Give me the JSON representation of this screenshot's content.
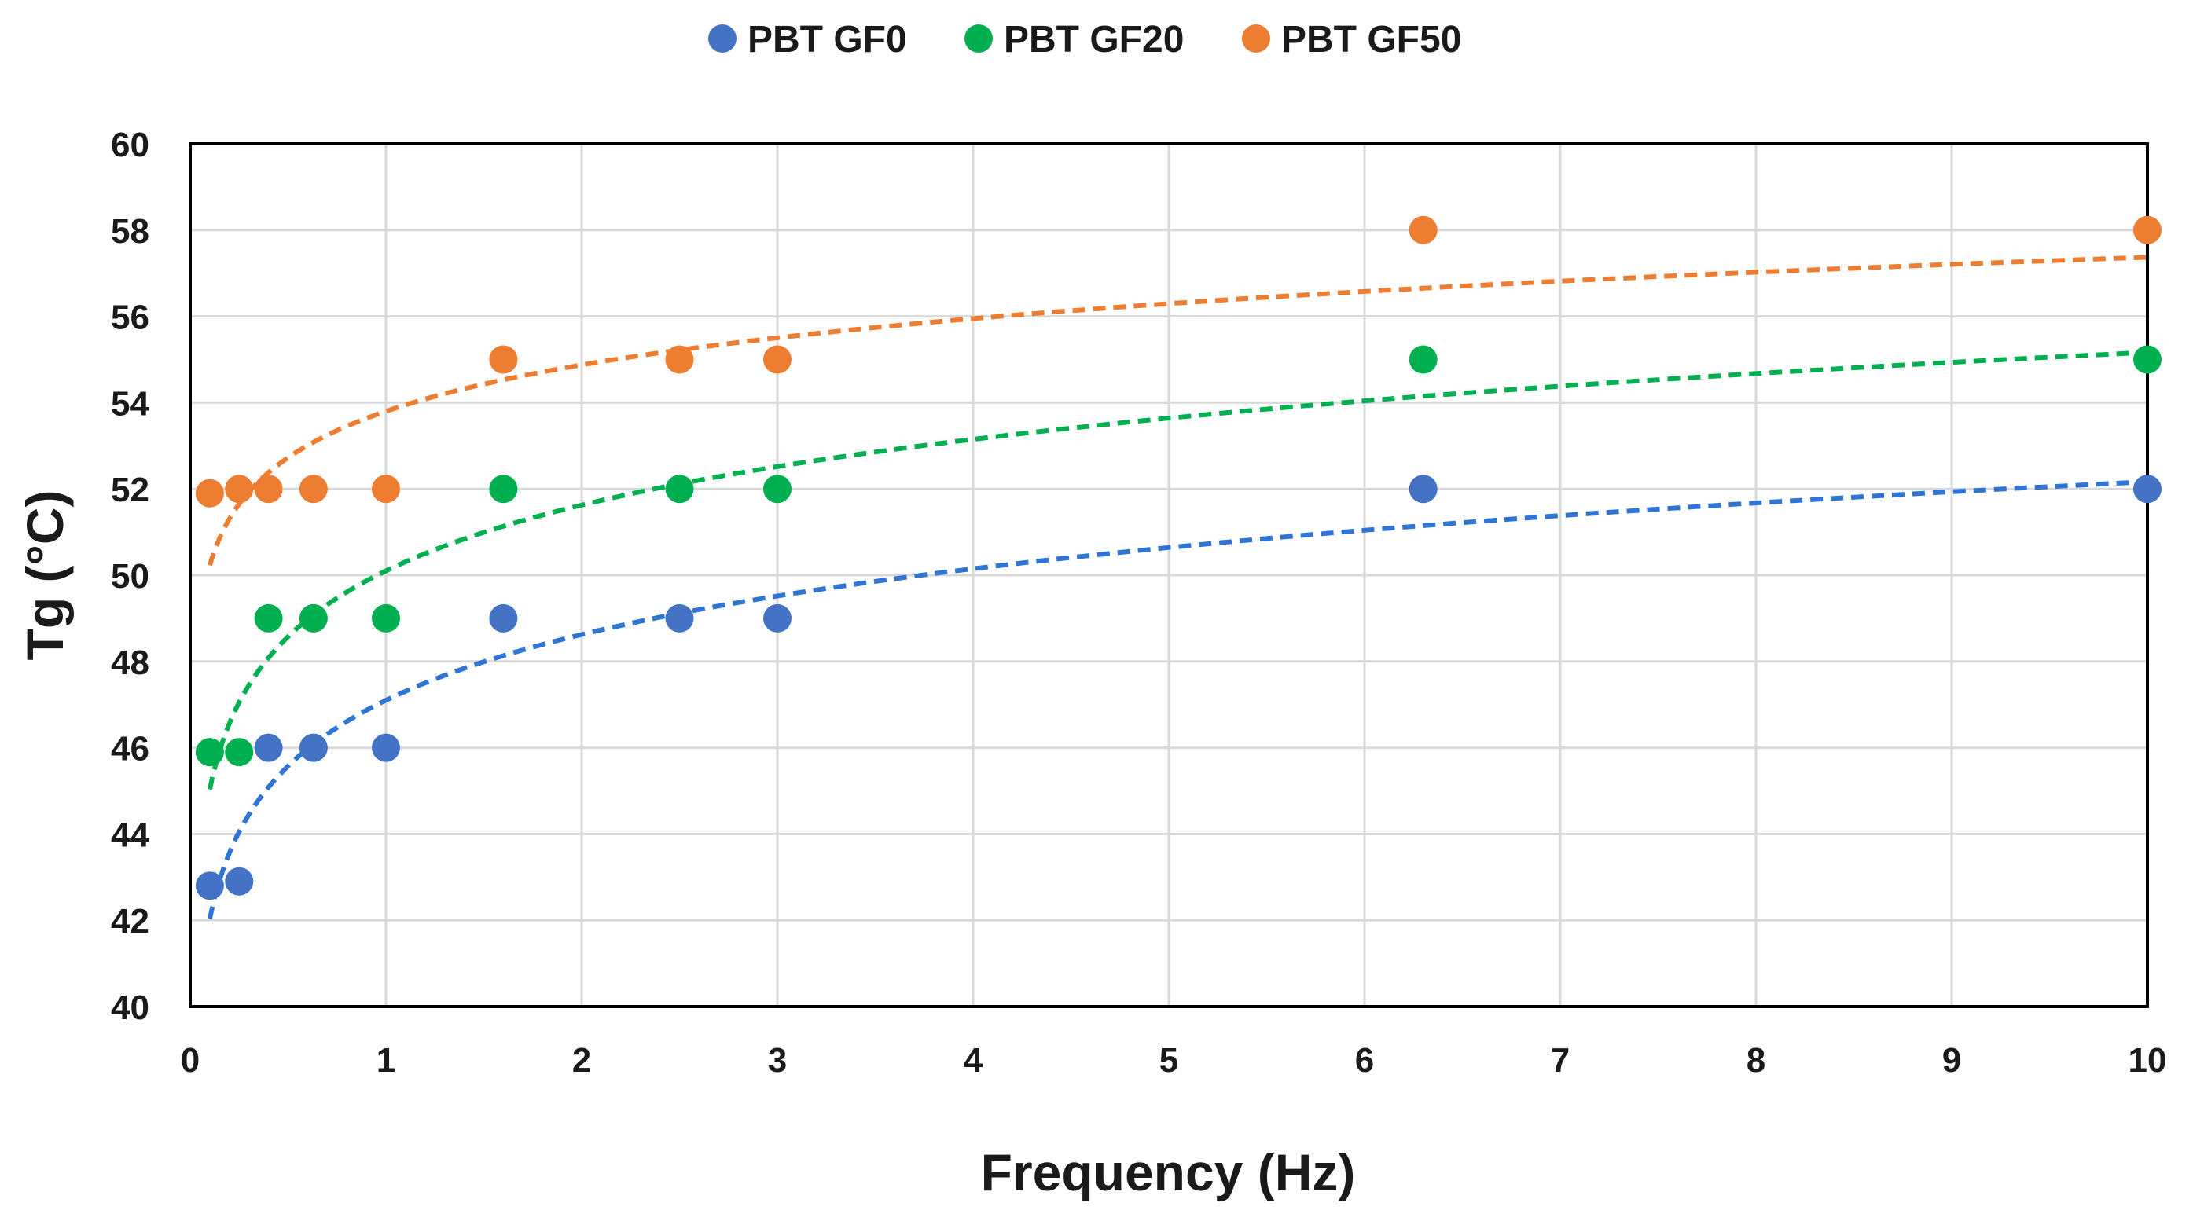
{
  "chart_data": {
    "type": "scatter",
    "title": "",
    "xlabel": "Frequency (Hz)",
    "ylabel": "Tg (°C)",
    "xlim": [
      0,
      10
    ],
    "ylim": [
      40,
      60
    ],
    "xticks": [
      0,
      1,
      2,
      3,
      4,
      5,
      6,
      7,
      8,
      9,
      10
    ],
    "yticks": [
      40,
      42,
      44,
      46,
      48,
      50,
      52,
      54,
      56,
      58,
      60
    ],
    "grid": true,
    "legend_position": "top-center",
    "series": [
      {
        "name": "PBT GF0",
        "color": "#4472C4",
        "trend_color": "#2E75D6",
        "x": [
          0.1,
          0.25,
          0.4,
          0.63,
          1,
          1.6,
          2.5,
          3,
          6.3,
          10
        ],
        "y": [
          42.8,
          42.9,
          46,
          46,
          46,
          49,
          49,
          49,
          52,
          52
        ],
        "trendline": {
          "type": "logarithmic",
          "a": 47.1,
          "b": 2.2
        }
      },
      {
        "name": "PBT GF20",
        "color": "#00B050",
        "trend_color": "#00B050",
        "x": [
          0.1,
          0.25,
          0.4,
          0.63,
          1,
          1.6,
          2.5,
          3,
          6.3,
          10
        ],
        "y": [
          45.9,
          45.9,
          49,
          49,
          49,
          52,
          52,
          52,
          55,
          55
        ],
        "trendline": {
          "type": "logarithmic",
          "a": 50.1,
          "b": 2.2
        }
      },
      {
        "name": "PBT GF50",
        "color": "#ED7D31",
        "trend_color": "#ED7D31",
        "x": [
          0.1,
          0.25,
          0.4,
          0.63,
          1,
          1.6,
          2.5,
          3,
          6.3,
          10
        ],
        "y": [
          51.9,
          52,
          52,
          52,
          52,
          55,
          55,
          55,
          58,
          58
        ],
        "trendline": {
          "type": "logarithmic",
          "a": 53.8,
          "b": 1.55
        }
      }
    ]
  }
}
